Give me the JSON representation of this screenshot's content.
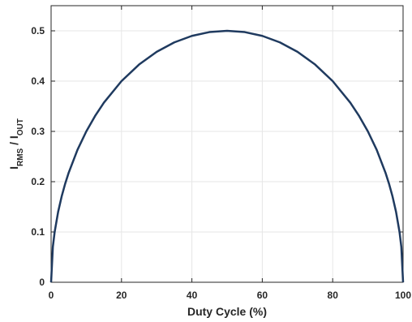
{
  "chart_data": {
    "type": "line",
    "title": "",
    "xlabel": "Duty Cycle (%)",
    "ylabel": {
      "main1": "I",
      "sub1": "RMS",
      "sep": " / ",
      "main2": "I",
      "sub2": "OUT"
    },
    "xlim": [
      0,
      100
    ],
    "ylim": [
      0,
      0.55
    ],
    "xticks": [
      0,
      20,
      40,
      60,
      80,
      100
    ],
    "xtick_labels": [
      "0",
      "20",
      "40",
      "60",
      "80",
      "100"
    ],
    "yticks": [
      0,
      0.1,
      0.2,
      0.3,
      0.4,
      0.5
    ],
    "ytick_labels": [
      "0",
      "0.1",
      "0.2",
      "0.3",
      "0.4",
      "0.5"
    ],
    "grid": true,
    "legend": "none",
    "series": [
      {
        "color": "#1f3a5f",
        "x": [
          0,
          0.5,
          1,
          2,
          3,
          4,
          5,
          7.5,
          10,
          12.5,
          15,
          20,
          25,
          30,
          35,
          40,
          45,
          50,
          55,
          60,
          65,
          70,
          75,
          80,
          85,
          87.5,
          90,
          92.5,
          95,
          96,
          97,
          98,
          99,
          99.5,
          100
        ],
        "y": [
          0,
          0.0705,
          0.0995,
          0.14,
          0.1706,
          0.196,
          0.2179,
          0.2634,
          0.3,
          0.3307,
          0.3571,
          0.4,
          0.433,
          0.4583,
          0.477,
          0.4899,
          0.4975,
          0.5,
          0.4975,
          0.4899,
          0.477,
          0.4583,
          0.433,
          0.4,
          0.3571,
          0.3307,
          0.3,
          0.2634,
          0.2179,
          0.196,
          0.1706,
          0.14,
          0.0995,
          0.0705,
          0
        ]
      }
    ]
  }
}
